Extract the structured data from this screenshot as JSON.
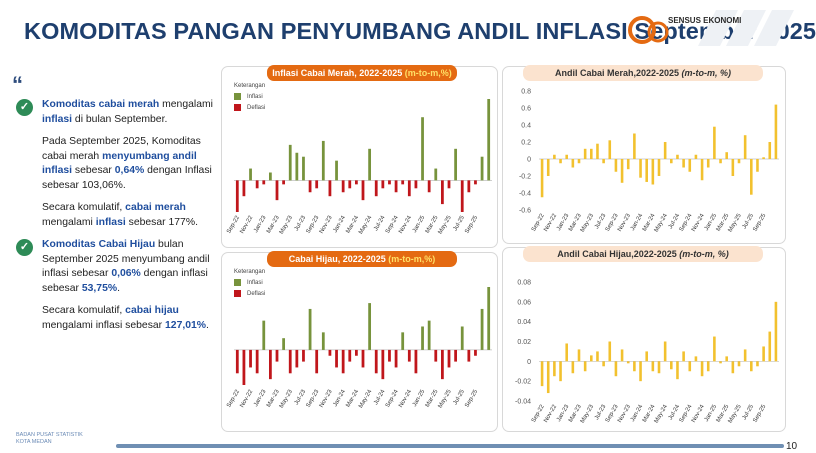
{
  "header": {
    "title": "KOMODITAS PANGAN PENYUMBANG ANDIL INFLASI September 2025",
    "logo_text": "SENSUS EKONOMI"
  },
  "left": {
    "quote_mark": "“",
    "p1": {
      "a": "Komoditas cabai merah",
      "b": " mengalami ",
      "c": "inflasi",
      "d": " di bulan September."
    },
    "p2": {
      "a": "Pada September 2025, Komoditas cabai merah ",
      "b": "menyumbang andil inflasi",
      "c": " sebesar ",
      "d": "0,64%",
      "e": " dengan Inflasi sebesar 103,06%."
    },
    "p3": {
      "a": "Secara komulatif, ",
      "b": "cabai merah",
      "c": " mengalami ",
      "d": "inflasi",
      "e": " sebesar 177%."
    },
    "p4": {
      "a": "Komoditas Cabai Hijau",
      "b": " bulan September 2025 menyumbang andil inflasi sebesar ",
      "c": "0,06%",
      "d": " dengan inflasi sebesar ",
      "e": "53,75%",
      "f": "."
    },
    "p5": {
      "a": "Secara komulatif, ",
      "b": "cabai hijau",
      "c": " mengalami inflasi sebesar ",
      "d": "127,01%",
      "e": "."
    }
  },
  "panels": {
    "p1": {
      "title": "Inflasi Cabai Merah, 2022-2025 ",
      "unit": "(m-to-m,%)"
    },
    "p2": {
      "title": "Andil Cabai Merah,2022-2025 ",
      "unit": "(m-to-m, %)"
    },
    "p3": {
      "title": "Cabai Hijau, 2022-2025 ",
      "unit": "(m-to-m,%)"
    },
    "p4": {
      "title": "Andil Cabai Hijau,2022-2025 ",
      "unit": "(m-to-m, %)"
    }
  },
  "legend": {
    "title": "Keterangan",
    "inflasi": "Inflasi",
    "deflasi": "Deflasi"
  },
  "colors": {
    "inflasi": "#77933c",
    "deflasi": "#c0161b",
    "andil": "#f2c12e",
    "orange": "#e46a12"
  },
  "footer": {
    "line1": "BADAN PUSAT STATISTIK",
    "line2": "KOTA MEDAN",
    "page": "10"
  },
  "chart_data": [
    {
      "type": "bar",
      "title": "Inflasi Cabai Merah, 2022-2025 (m-to-m,%)",
      "x_tick_labels": [
        "Sep-22",
        "Nov-22",
        "Jan-23",
        "Mar-23",
        "May-23",
        "Jul-23",
        "Sep-23",
        "Nov-23",
        "Jan-24",
        "Mar-24",
        "May-24",
        "Jul-24",
        "Sep-24",
        "Nov-24",
        "Jan-25",
        "Mar-25",
        "May-25",
        "Jul-25",
        "Sep-25"
      ],
      "values": [
        -40,
        -20,
        15,
        -10,
        -5,
        10,
        -25,
        -5,
        45,
        35,
        30,
        -15,
        -10,
        50,
        -20,
        25,
        -15,
        -10,
        -5,
        -25,
        40,
        -20,
        -10,
        -5,
        -15,
        -5,
        -20,
        -10,
        80,
        -15,
        15,
        -30,
        -10,
        40,
        -40,
        -15,
        -5,
        30,
        103.06
      ]
    },
    {
      "type": "bar",
      "title": "Andil Cabai Merah,2022-2025 (m-to-m, %)",
      "ylim": [
        -0.6,
        0.8
      ],
      "yticks": [
        -0.6,
        -0.4,
        -0.2,
        0,
        0.2,
        0.4,
        0.6,
        0.8
      ],
      "x_tick_labels": [
        "Sep-22",
        "Nov-22",
        "Jan-23",
        "Mar-23",
        "May-23",
        "Jul-23",
        "Sep-23",
        "Nov-23",
        "Jan-24",
        "Mar-24",
        "May-24",
        "Jul-24",
        "Sep-24",
        "Nov-24",
        "Jan-25",
        "Mar-25",
        "May-25",
        "Jul-25",
        "Sep-25"
      ],
      "values": [
        -0.45,
        -0.2,
        0.05,
        -0.05,
        0.05,
        -0.1,
        -0.05,
        0.12,
        0.12,
        0.18,
        -0.05,
        0.22,
        -0.15,
        -0.28,
        -0.12,
        0.3,
        -0.22,
        -0.27,
        -0.3,
        -0.2,
        0.2,
        -0.05,
        0.05,
        -0.1,
        -0.15,
        0.05,
        -0.25,
        -0.1,
        0.38,
        -0.05,
        0.08,
        -0.2,
        -0.05,
        0.28,
        -0.42,
        -0.15,
        0.02,
        0.2,
        0.64
      ]
    },
    {
      "type": "bar",
      "title": "Cabai Hijau, 2022-2025 (m-to-m,%)",
      "x_tick_labels": [
        "Sep-22",
        "Nov-22",
        "Jan-23",
        "Mar-23",
        "May-23",
        "Jul-23",
        "Sep-23",
        "Nov-23",
        "Jan-24",
        "Mar-24",
        "May-24",
        "Jul-24",
        "Sep-24",
        "Nov-24",
        "Jan-25",
        "Mar-25",
        "May-25",
        "Jul-25",
        "Sep-25"
      ],
      "values": [
        -20,
        -30,
        -15,
        -20,
        25,
        -25,
        -10,
        10,
        -20,
        -15,
        -10,
        35,
        -20,
        15,
        -5,
        -15,
        -20,
        -10,
        -5,
        -15,
        40,
        -20,
        -25,
        -10,
        -15,
        15,
        -10,
        -20,
        20,
        25,
        -10,
        -25,
        -15,
        -10,
        20,
        -10,
        -5,
        35,
        53.75
      ]
    },
    {
      "type": "bar",
      "title": "Andil Cabai Hijau,2022-2025 (m-to-m, %)",
      "ylim": [
        -0.04,
        0.08
      ],
      "yticks": [
        -0.04,
        -0.02,
        0,
        0.02,
        0.04,
        0.06,
        0.08
      ],
      "x_tick_labels": [
        "Sep-22",
        "Nov-22",
        "Jan-23",
        "Mar-23",
        "May-23",
        "Jul-23",
        "Sep-23",
        "Nov-23",
        "Jan-24",
        "Mar-24",
        "May-24",
        "Jul-24",
        "Sep-24",
        "Nov-24",
        "Jan-25",
        "Mar-25",
        "May-25",
        "Jul-25",
        "Sep-25"
      ],
      "values": [
        -0.025,
        -0.032,
        -0.015,
        -0.02,
        0.018,
        -0.012,
        0.012,
        -0.01,
        0.006,
        0.01,
        -0.005,
        0.02,
        -0.015,
        0.012,
        -0.002,
        -0.01,
        -0.02,
        0.01,
        -0.01,
        -0.012,
        0.02,
        -0.008,
        -0.018,
        0.01,
        -0.01,
        0.005,
        -0.015,
        -0.01,
        0.025,
        -0.002,
        0.005,
        -0.012,
        -0.005,
        0.012,
        -0.01,
        -0.005,
        0.015,
        0.03,
        0.06
      ]
    }
  ]
}
